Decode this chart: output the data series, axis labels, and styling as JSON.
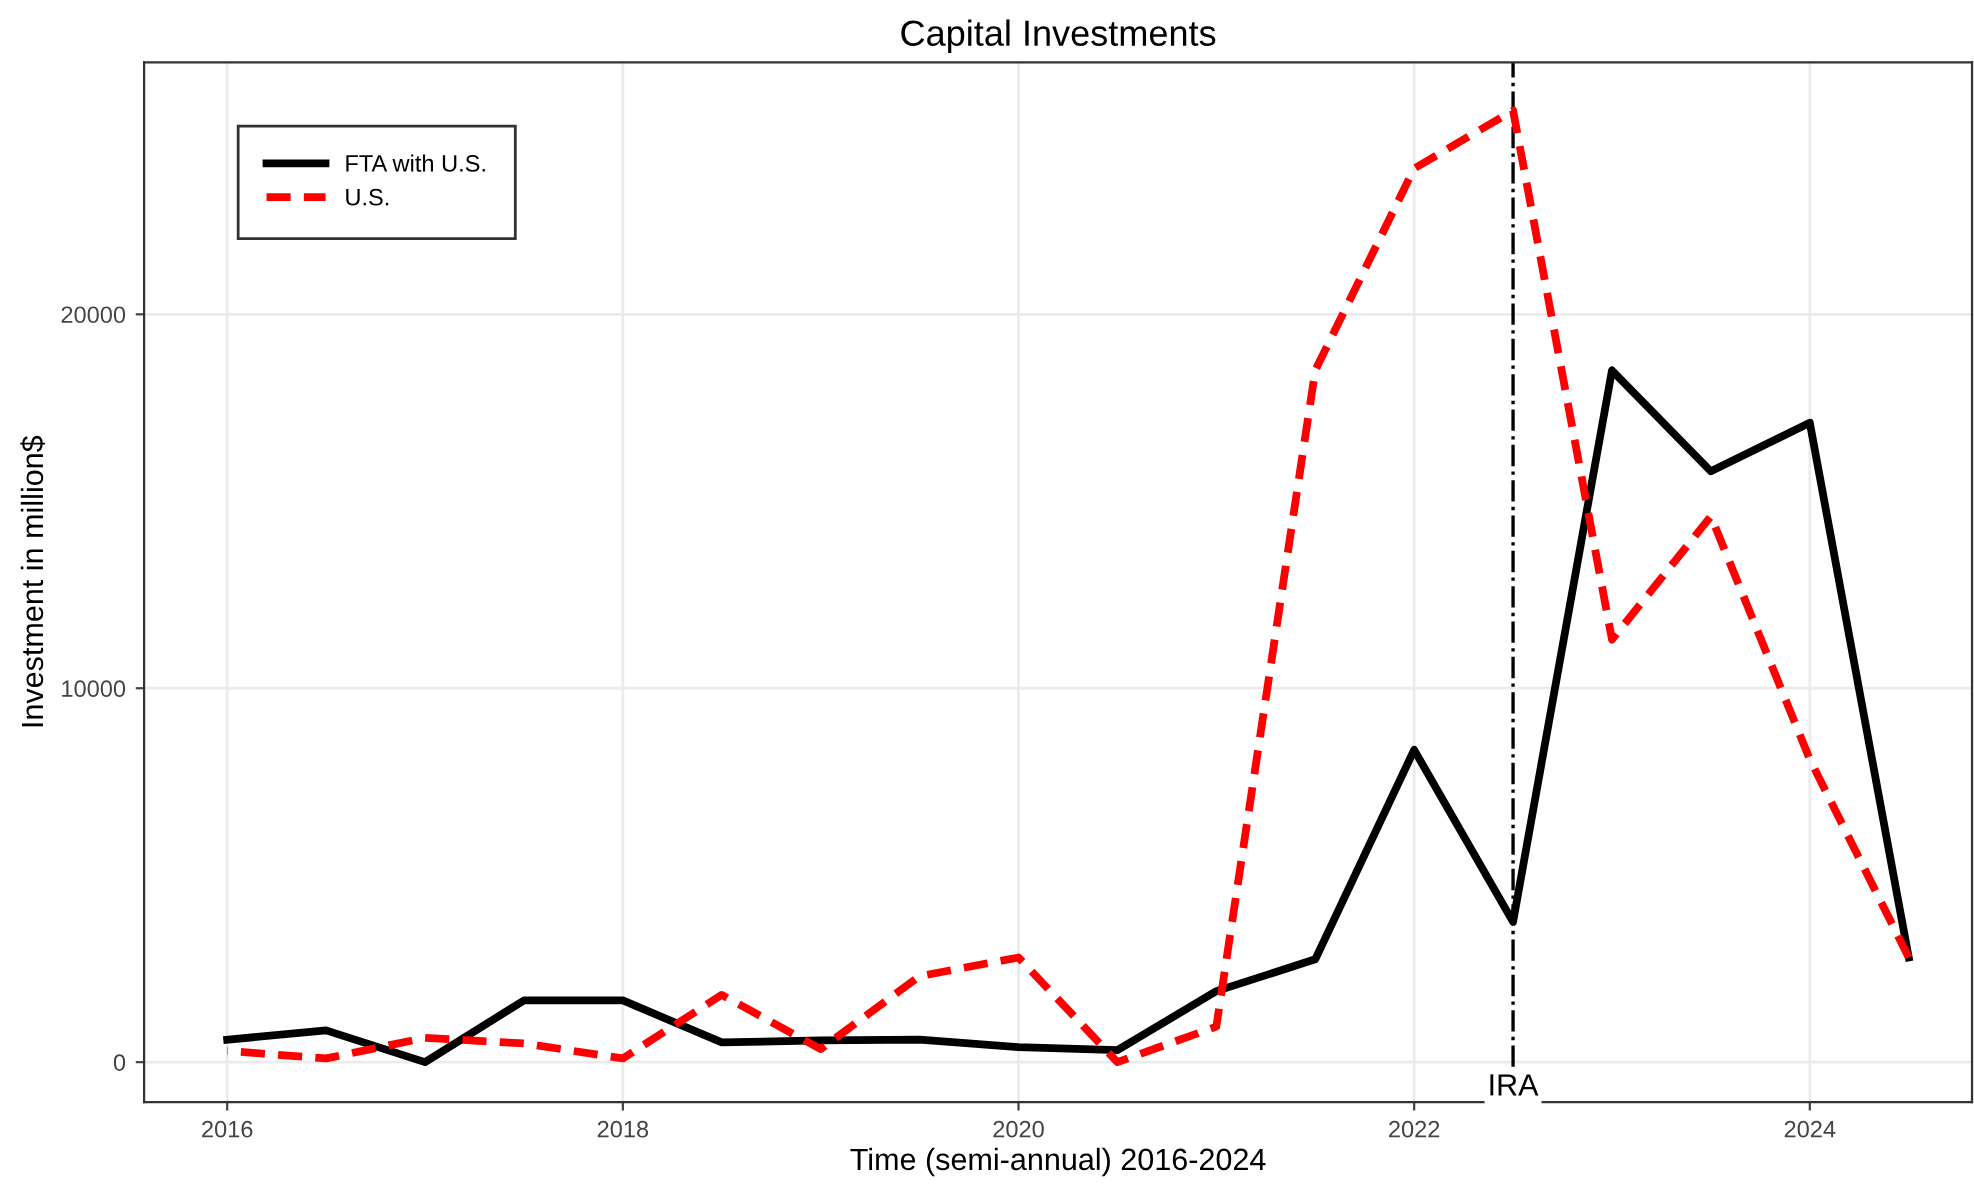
{
  "chart_data": {
    "type": "line",
    "title": "Capital Investments",
    "xlabel": "Time (semi-annual) 2016-2024",
    "ylabel": "Investment in million$",
    "x": [
      2016,
      2016.5,
      2017,
      2017.5,
      2018,
      2018.5,
      2019,
      2019.5,
      2020,
      2020.5,
      2021,
      2021.5,
      2022,
      2022.5,
      2023,
      2023.5,
      2024,
      2024.5
    ],
    "series": [
      {
        "name": "FTA with U.S.",
        "color": "#000000",
        "line_style": "solid",
        "values": [
          600,
          850,
          0,
          1650,
          1650,
          530,
          580,
          600,
          400,
          320,
          1900,
          2750,
          8350,
          3750,
          18500,
          15800,
          17100,
          2800
        ]
      },
      {
        "name": "U.S.",
        "color": "#ff0000",
        "line_style": "dashed",
        "values": [
          300,
          100,
          650,
          500,
          100,
          1800,
          350,
          2300,
          2800,
          0,
          950,
          18500,
          23900,
          25450,
          11300,
          14600,
          8100,
          2800
        ]
      }
    ],
    "xlim": [
      2015.58,
      2024.82
    ],
    "ylim": [
      -1070,
      26740
    ],
    "xticks": [
      2016,
      2018,
      2020,
      2022,
      2024
    ],
    "yticks": [
      0,
      10000,
      20000
    ],
    "ref_lines": [
      {
        "axis": "x",
        "value": 2022.5,
        "label": "IRA",
        "color": "#000000",
        "line_style": "dashdot"
      }
    ],
    "grid": true,
    "legend": "top left",
    "marker": "none"
  }
}
